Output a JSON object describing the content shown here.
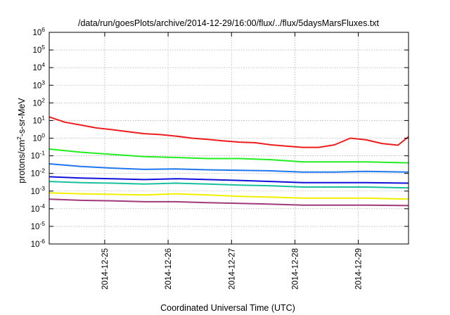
{
  "chart_data": {
    "type": "line",
    "title": "/data/run/goesPlots/archive/2014-12-29/16:00/flux/../flux/5daysMarsFluxes.txt",
    "xlabel": "Coordinated Universal Time (UTC)",
    "ylabel": "protons/cm²-s-sr-MeV",
    "yscale": "log",
    "ylim": [
      1e-06,
      1000000.0
    ],
    "xlim": [
      "2014-12-24T03:00",
      "2014-12-29T19:00"
    ],
    "grid": true,
    "y_ticks": [
      {
        "value": 1e-06,
        "base": "10",
        "exp": "-6"
      },
      {
        "value": 1e-05,
        "base": "10",
        "exp": "-5"
      },
      {
        "value": 0.0001,
        "base": "10",
        "exp": "-4"
      },
      {
        "value": 0.001,
        "base": "10",
        "exp": "-3"
      },
      {
        "value": 0.01,
        "base": "10",
        "exp": "-2"
      },
      {
        "value": 0.1,
        "base": "10",
        "exp": "-1"
      },
      {
        "value": 1,
        "base": "10",
        "exp": "0"
      },
      {
        "value": 10,
        "base": "10",
        "exp": "1"
      },
      {
        "value": 100,
        "base": "10",
        "exp": "2"
      },
      {
        "value": 1000,
        "base": "10",
        "exp": "3"
      },
      {
        "value": 10000,
        "base": "10",
        "exp": "4"
      },
      {
        "value": 100000,
        "base": "10",
        "exp": "5"
      },
      {
        "value": 1000000,
        "base": "10",
        "exp": "6"
      }
    ],
    "x_ticks": [
      {
        "value": "2014-12-25T00:00",
        "label": "2014-12-25"
      },
      {
        "value": "2014-12-26T00:00",
        "label": "2014-12-26"
      },
      {
        "value": "2014-12-27T00:00",
        "label": "2014-12-27"
      },
      {
        "value": "2014-12-28T00:00",
        "label": "2014-12-28"
      },
      {
        "value": "2014-12-29T00:00",
        "label": "2014-12-29"
      }
    ],
    "series": [
      {
        "color": "#ee1c1c",
        "points": [
          [
            "2014-12-24T03:00",
            16
          ],
          [
            "2014-12-24T09:00",
            8
          ],
          [
            "2014-12-24T15:00",
            5.5
          ],
          [
            "2014-12-24T21:00",
            3.8
          ],
          [
            "2014-12-25T03:00",
            3
          ],
          [
            "2014-12-25T09:00",
            2.3
          ],
          [
            "2014-12-25T15:00",
            1.8
          ],
          [
            "2014-12-25T21:00",
            1.6
          ],
          [
            "2014-12-26T03:00",
            1.3
          ],
          [
            "2014-12-26T09:00",
            1
          ],
          [
            "2014-12-26T15:00",
            0.85
          ],
          [
            "2014-12-26T21:00",
            0.7
          ],
          [
            "2014-12-27T03:00",
            0.6
          ],
          [
            "2014-12-27T09:00",
            0.55
          ],
          [
            "2014-12-27T15:00",
            0.42
          ],
          [
            "2014-12-27T21:00",
            0.35
          ],
          [
            "2014-12-28T03:00",
            0.3
          ],
          [
            "2014-12-28T09:00",
            0.3
          ],
          [
            "2014-12-28T15:00",
            0.42
          ],
          [
            "2014-12-28T21:00",
            1
          ],
          [
            "2014-12-29T03:00",
            0.8
          ],
          [
            "2014-12-29T09:00",
            0.5
          ],
          [
            "2014-12-29T15:00",
            0.4
          ],
          [
            "2014-12-29T19:00",
            1.2
          ]
        ]
      },
      {
        "color": "#22ee22",
        "points": [
          [
            "2014-12-24T03:00",
            0.24
          ],
          [
            "2014-12-24T15:00",
            0.16
          ],
          [
            "2014-12-25T03:00",
            0.12
          ],
          [
            "2014-12-25T15:00",
            0.09
          ],
          [
            "2014-12-26T03:00",
            0.08
          ],
          [
            "2014-12-26T15:00",
            0.07
          ],
          [
            "2014-12-27T03:00",
            0.07
          ],
          [
            "2014-12-27T15:00",
            0.06
          ],
          [
            "2014-12-28T03:00",
            0.045
          ],
          [
            "2014-12-28T15:00",
            0.045
          ],
          [
            "2014-12-29T03:00",
            0.045
          ],
          [
            "2014-12-29T19:00",
            0.04
          ]
        ]
      },
      {
        "color": "#1e78ee",
        "points": [
          [
            "2014-12-24T03:00",
            0.035
          ],
          [
            "2014-12-24T15:00",
            0.025
          ],
          [
            "2014-12-25T03:00",
            0.02
          ],
          [
            "2014-12-25T15:00",
            0.017
          ],
          [
            "2014-12-26T03:00",
            0.018
          ],
          [
            "2014-12-26T15:00",
            0.016
          ],
          [
            "2014-12-27T03:00",
            0.015
          ],
          [
            "2014-12-27T15:00",
            0.014
          ],
          [
            "2014-12-28T03:00",
            0.012
          ],
          [
            "2014-12-28T15:00",
            0.012
          ],
          [
            "2014-12-29T03:00",
            0.013
          ],
          [
            "2014-12-29T19:00",
            0.012
          ]
        ]
      },
      {
        "color": "#1010dd",
        "points": [
          [
            "2014-12-24T03:00",
            0.0065
          ],
          [
            "2014-12-24T15:00",
            0.0055
          ],
          [
            "2014-12-25T03:00",
            0.005
          ],
          [
            "2014-12-25T15:00",
            0.0045
          ],
          [
            "2014-12-26T03:00",
            0.005
          ],
          [
            "2014-12-26T15:00",
            0.0045
          ],
          [
            "2014-12-27T03:00",
            0.004
          ],
          [
            "2014-12-27T15:00",
            0.0035
          ],
          [
            "2014-12-28T03:00",
            0.003
          ],
          [
            "2014-12-28T15:00",
            0.003
          ],
          [
            "2014-12-29T03:00",
            0.003
          ],
          [
            "2014-12-29T19:00",
            0.0028
          ]
        ]
      },
      {
        "color": "#18c0a0",
        "points": [
          [
            "2014-12-24T03:00",
            0.0035
          ],
          [
            "2014-12-24T15:00",
            0.003
          ],
          [
            "2014-12-25T03:00",
            0.0028
          ],
          [
            "2014-12-25T15:00",
            0.0025
          ],
          [
            "2014-12-26T03:00",
            0.0028
          ],
          [
            "2014-12-26T15:00",
            0.0025
          ],
          [
            "2014-12-27T03:00",
            0.0022
          ],
          [
            "2014-12-27T15:00",
            0.002
          ],
          [
            "2014-12-28T03:00",
            0.0017
          ],
          [
            "2014-12-28T15:00",
            0.0017
          ],
          [
            "2014-12-29T03:00",
            0.0017
          ],
          [
            "2014-12-29T19:00",
            0.0015
          ]
        ]
      },
      {
        "color": "#f0f000",
        "points": [
          [
            "2014-12-24T03:00",
            0.0008
          ],
          [
            "2014-12-24T15:00",
            0.0007
          ],
          [
            "2014-12-25T03:00",
            0.00065
          ],
          [
            "2014-12-25T15:00",
            0.0006
          ],
          [
            "2014-12-26T03:00",
            0.0007
          ],
          [
            "2014-12-26T15:00",
            0.0006
          ],
          [
            "2014-12-27T03:00",
            0.0005
          ],
          [
            "2014-12-27T15:00",
            0.00045
          ],
          [
            "2014-12-28T03:00",
            0.0004
          ],
          [
            "2014-12-28T15:00",
            0.0004
          ],
          [
            "2014-12-29T03:00",
            0.0004
          ],
          [
            "2014-12-29T19:00",
            0.00035
          ]
        ]
      },
      {
        "color": "#a03a7a",
        "points": [
          [
            "2014-12-24T03:00",
            0.00035
          ],
          [
            "2014-12-24T15:00",
            0.0003
          ],
          [
            "2014-12-25T03:00",
            0.00028
          ],
          [
            "2014-12-25T15:00",
            0.00025
          ],
          [
            "2014-12-26T03:00",
            0.00025
          ],
          [
            "2014-12-26T15:00",
            0.00022
          ],
          [
            "2014-12-27T03:00",
            0.0002
          ],
          [
            "2014-12-27T15:00",
            0.00018
          ],
          [
            "2014-12-28T03:00",
            0.00016
          ],
          [
            "2014-12-28T15:00",
            0.00016
          ],
          [
            "2014-12-29T03:00",
            0.00016
          ],
          [
            "2014-12-29T19:00",
            0.00015
          ]
        ]
      }
    ]
  }
}
